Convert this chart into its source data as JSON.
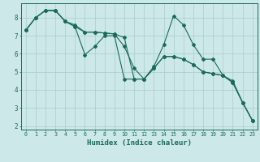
{
  "xlabel": "Humidex (Indice chaleur)",
  "background_color": "#cce8e8",
  "grid_color": "#aacccc",
  "line_color": "#1a6b5a",
  "xlim": [
    -0.5,
    23.5
  ],
  "ylim": [
    1.8,
    8.8
  ],
  "yticks": [
    2,
    3,
    4,
    5,
    6,
    7,
    8
  ],
  "x": [
    0,
    1,
    2,
    3,
    4,
    5,
    6,
    7,
    8,
    9,
    10,
    11,
    12,
    13,
    14,
    15,
    16,
    17,
    18,
    19,
    20,
    21,
    22,
    23
  ],
  "line1": [
    7.3,
    8.0,
    8.4,
    8.4,
    7.8,
    7.6,
    7.2,
    7.2,
    7.15,
    7.1,
    6.9,
    4.6,
    4.6,
    5.3,
    6.5,
    8.1,
    7.6,
    6.5,
    5.7,
    5.7,
    4.8,
    4.5,
    3.3,
    2.3
  ],
  "line2": [
    7.3,
    8.0,
    8.4,
    8.4,
    7.8,
    7.5,
    5.95,
    6.4,
    7.0,
    7.0,
    4.6,
    4.6,
    4.6,
    5.2,
    5.85,
    5.85,
    5.7,
    5.4,
    5.0,
    4.9,
    4.8,
    4.4,
    3.3,
    2.3
  ],
  "line3": [
    7.3,
    8.0,
    8.4,
    8.4,
    7.8,
    7.5,
    7.2,
    7.2,
    7.15,
    7.1,
    6.4,
    5.2,
    4.6,
    5.2,
    5.85,
    5.85,
    5.7,
    5.4,
    5.0,
    4.9,
    4.8,
    4.4,
    3.3,
    2.3
  ]
}
